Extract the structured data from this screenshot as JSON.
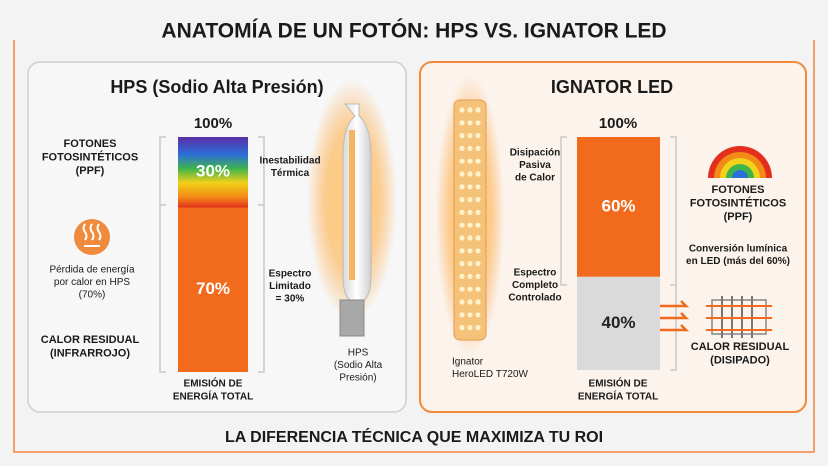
{
  "title": "ANATOMÍA DE UN FOTÓN: HPS VS. IGNATOR LED",
  "footer": "LA DIFERENCIA TÉCNICA QUE MAXIMIZA TU ROI",
  "panels": [
    {
      "title": "HPS (Sodio Alta Presión)",
      "top_label": "100%",
      "segments": [
        {
          "value": 30,
          "label": "30%"
        },
        {
          "value": 70,
          "label": "70%"
        }
      ],
      "labels": [
        [
          "FOTONES",
          "FOTOSINTÉTICOS",
          "(PPF)"
        ],
        [
          "Pérdida de energía",
          "por calor en HPS",
          "(70%)"
        ],
        [
          "CALOR RESIDUAL",
          "(INFRARROJO)"
        ],
        [
          "Inestabilidad",
          "Térmica"
        ],
        [
          "Espectro",
          "Limitado",
          "= 30%"
        ]
      ],
      "bar_caption": [
        "EMISIÓN DE",
        "ENERGÍA TOTAL"
      ],
      "lamp_caption": [
        "HPS",
        "(Sodio Alta",
        "Presión)"
      ]
    },
    {
      "title": "IGNATOR LED",
      "top_label": "100%",
      "segments": [
        {
          "value": 60,
          "label": "60%"
        },
        {
          "value": 40,
          "label": "40%"
        }
      ],
      "labels": [
        [
          "Disipación",
          "Pasiva",
          "de Calor"
        ],
        [
          "Espectro",
          "Completo",
          "Controlado"
        ],
        [
          "FOTONES",
          "FOTOSINTÉTICOS",
          "(PPF)"
        ],
        [
          "Conversión lumínica",
          "en LED (más del 60%)"
        ],
        [
          "CALOR RESIDUAL",
          "(DISIPADO)"
        ]
      ],
      "bar_caption": [
        "EMISIÓN DE",
        "ENERGÍA TOTAL"
      ],
      "lamp_caption": [
        "Ignator",
        "HeroLED T720W"
      ]
    }
  ]
}
